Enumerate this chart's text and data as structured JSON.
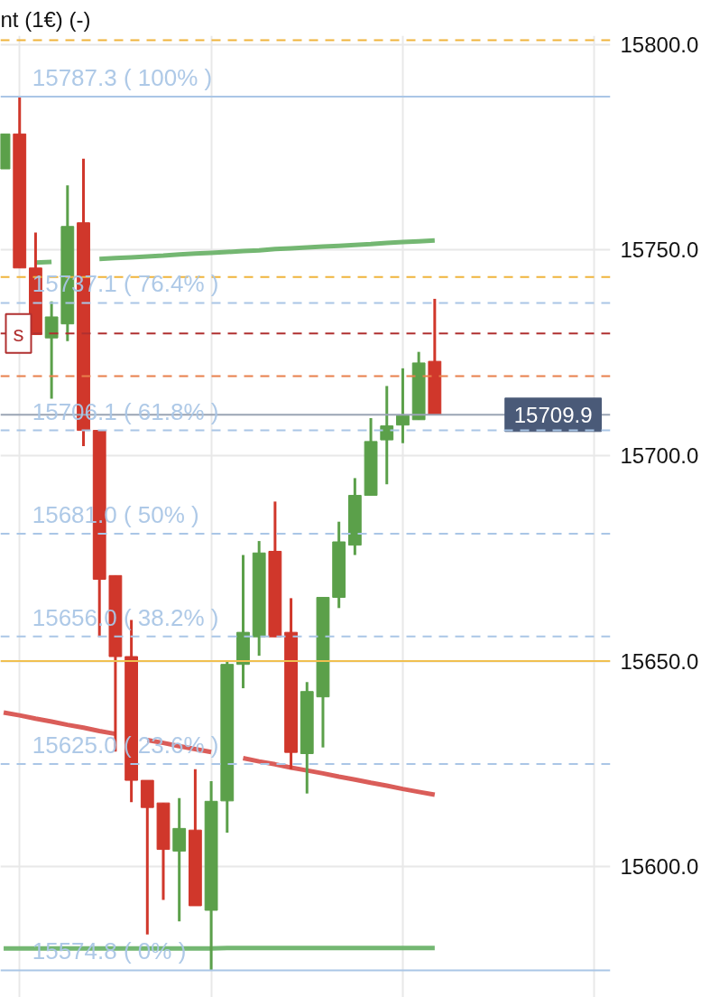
{
  "chart_data": {
    "type": "candlestick",
    "title": "nt (1€) (-)",
    "categories": [
      null,
      null,
      null,
      null,
      null,
      null,
      null,
      null,
      null,
      null,
      null,
      null,
      null,
      null,
      null,
      null,
      null,
      null,
      null,
      null,
      null,
      null,
      null,
      null,
      null,
      null,
      null,
      null
    ],
    "ohlc": [
      [
        15769.7,
        15778.2,
        15769.7,
        15778.2
      ],
      [
        15778.2,
        15787.3,
        15745.6,
        15745.6
      ],
      [
        15745.6,
        15754.2,
        15729.4,
        15729.4
      ],
      [
        15728.6,
        15737.5,
        15713.8,
        15733.7
      ],
      [
        15732.0,
        15765.7,
        15727.8,
        15755.7
      ],
      [
        15756.6,
        15772.2,
        15702.3,
        15706.1
      ],
      [
        15706.1,
        15706.1,
        15655.9,
        15669.9
      ],
      [
        15670.8,
        15670.8,
        15628.0,
        15651.1
      ],
      [
        15651.1,
        15660.0,
        15615.7,
        15621.0
      ],
      [
        15621.0,
        15621.0,
        15583.5,
        15614.4
      ],
      [
        15615.5,
        15615.5,
        15591.9,
        15604.2
      ],
      [
        15603.8,
        15616.7,
        15586.7,
        15609.3
      ],
      [
        15608.9,
        15623.7,
        15590.5,
        15590.5
      ],
      [
        15589.4,
        15620.8,
        15574.8,
        15615.9
      ],
      [
        15616.0,
        15650.0,
        15608.3,
        15649.2
      ],
      [
        15649.2,
        15675.8,
        15643.4,
        15657.0
      ],
      [
        15655.9,
        15679.2,
        15651.3,
        15676.3
      ],
      [
        15676.7,
        15688.8,
        15655.9,
        15655.9
      ],
      [
        15657.0,
        15665.3,
        15623.7,
        15627.8
      ],
      [
        15627.5,
        15644.9,
        15617.8,
        15642.6
      ],
      [
        15641.3,
        15665.5,
        15629.0,
        15665.5
      ],
      [
        15665.5,
        15683.9,
        15662.9,
        15679.0
      ],
      [
        15678.2,
        15694.5,
        15675.8,
        15690.3
      ],
      [
        15690.3,
        15709.1,
        15690.3,
        15703.4
      ],
      [
        15703.8,
        15716.9,
        15693.0,
        15707.2
      ],
      [
        15707.4,
        15721.2,
        15703.0,
        15709.7
      ],
      [
        15708.7,
        15725.2,
        15708.7,
        15722.5
      ],
      [
        15722.9,
        15738.1,
        15709.9,
        15709.9
      ]
    ],
    "colors": [
      "#5ba04a",
      "#d0372b",
      "#d0372b",
      "#5ba04a",
      "#5ba04a",
      "#d0372b",
      "#d0372b",
      "#d0372b",
      "#d0372b",
      "#d0372b",
      "#d0372b",
      "#5ba04a",
      "#d0372b",
      "#5ba04a",
      "#5ba04a",
      "#5ba04a",
      "#5ba04a",
      "#d0372b",
      "#d0372b",
      "#5ba04a",
      "#5ba04a",
      "#5ba04a",
      "#5ba04a",
      "#5ba04a",
      "#5ba04a",
      "#5ba04a",
      "#5ba04a",
      "#d0372b"
    ],
    "series": [
      {
        "type": "line",
        "color": "#6db36a",
        "values": [
          null,
          null,
          15746.9,
          15747.1,
          null,
          null,
          15747.8,
          15748.0,
          15748.2,
          15748.4,
          15748.6,
          15748.9,
          15749.1,
          15749.3,
          15749.5,
          15749.7,
          15749.9,
          15750.2,
          15750.4,
          15750.6,
          15750.8,
          15751.0,
          15751.2,
          15751.4,
          15751.7,
          15751.9,
          15752.1,
          15752.3
        ]
      },
      {
        "type": "line",
        "color": "#6db36a",
        "values": [
          15580.1,
          15580.1,
          15580.1,
          15580.1,
          15580.1,
          15580.1,
          15580.1,
          15580.1,
          15580.1,
          15580.1,
          15580.1,
          15580.1,
          15580.1,
          15580.1,
          15580.2,
          15580.2,
          15580.2,
          15580.2,
          15580.2,
          15580.2,
          15580.2,
          15580.2,
          15580.2,
          15580.2,
          15580.2,
          15580.2,
          15580.2,
          15580.2
        ]
      },
      {
        "type": "line",
        "color": "#d85450",
        "values": [
          15637.5,
          15636.8,
          15636.0,
          15635.3,
          15634.5,
          15633.8,
          15633.0,
          15632.3,
          null,
          15630.8,
          15630.1,
          15629.3,
          15628.6,
          15627.9,
          null,
          15626.4,
          15625.6,
          15624.9,
          15624.1,
          15623.4,
          15622.7,
          15621.9,
          15621.2,
          15620.4,
          15619.7,
          15618.9,
          15618.2,
          15617.5
        ]
      }
    ],
    "ref_lines": [
      {
        "axis": "y",
        "value": 15801,
        "color": "#f0b43c",
        "line_style": "dashed"
      },
      {
        "axis": "y",
        "value": 15787.3,
        "label": "15787.3 ( 100% )",
        "color": "#aac6e6",
        "line_style": "solid"
      },
      {
        "axis": "y",
        "value": 15743.4,
        "color": "#f0b43c",
        "line_style": "dashed"
      },
      {
        "axis": "y",
        "value": 15737.1,
        "label": "15737.1 ( 76.4% )",
        "color": "#aac6e6",
        "line_style": "dashed"
      },
      {
        "axis": "y",
        "value": 15729.7,
        "label": "s",
        "color": "#b03030",
        "line_style": "dashed"
      },
      {
        "axis": "y",
        "value": 15719.3,
        "color": "#e8804c",
        "line_style": "dashed"
      },
      {
        "axis": "y",
        "value": 15709.9,
        "label": "15709.9",
        "color": "#9aa4b4",
        "line_style": "solid"
      },
      {
        "axis": "y",
        "value": 15706.1,
        "label": "15706.1 ( 61.8% )",
        "color": "#aac6e6",
        "line_style": "dashed"
      },
      {
        "axis": "y",
        "value": 15681.0,
        "label": "15681.0 ( 50% )",
        "color": "#aac6e6",
        "line_style": "dashed"
      },
      {
        "axis": "y",
        "value": 15656.0,
        "label": "15656.0 ( 38.2% )",
        "color": "#aac6e6",
        "line_style": "dashed"
      },
      {
        "axis": "y",
        "value": 15650,
        "color": "#f0c050",
        "line_style": "solid"
      },
      {
        "axis": "y",
        "value": 15625.0,
        "label": "15625.0 ( 23.6% )",
        "color": "#aac6e6",
        "line_style": "dashed"
      },
      {
        "axis": "y",
        "value": 15574.8,
        "label": "15574.8 ( 0% )",
        "color": "#aac6e6",
        "line_style": "solid"
      }
    ],
    "ylim": [
      15568.2,
      15802.1
    ],
    "yticks": [
      {
        "value": 15600,
        "label": "15600.0"
      },
      {
        "value": 15650,
        "label": "15650.0"
      },
      {
        "value": 15700,
        "label": "15700.0"
      },
      {
        "value": 15750,
        "label": "15750.0"
      },
      {
        "value": 15800,
        "label": "15800.0"
      }
    ],
    "grid": true,
    "tick_labels": "y"
  }
}
